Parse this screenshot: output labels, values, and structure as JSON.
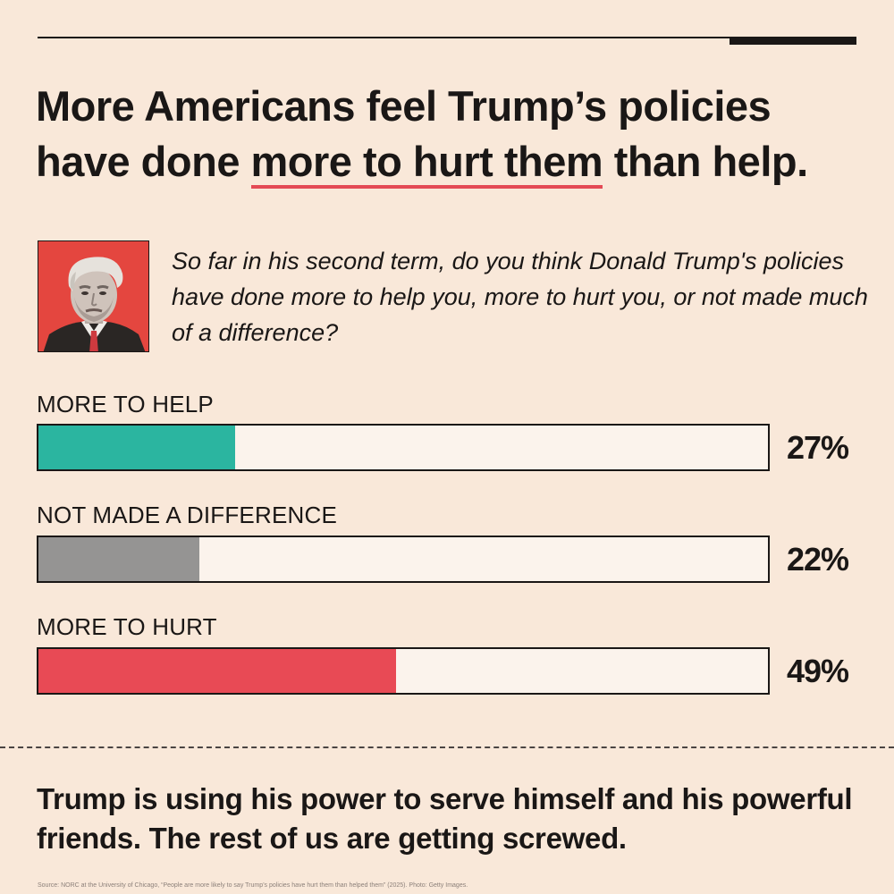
{
  "headline": {
    "line1": "More Americans feel Trump’s policies",
    "line2_before": "have done ",
    "line2_highlight": "more to hurt them",
    "line2_after": " than help."
  },
  "question": "So far in his second term, do you think Donald Trump's policies have done more to help you, more to hurt you, or not made much of a difference?",
  "chart_data": {
    "type": "bar",
    "orientation": "horizontal",
    "categories": [
      "MORE TO HELP",
      "NOT MADE A DIFFERENCE",
      "MORE TO HURT"
    ],
    "values": [
      27,
      22,
      49
    ],
    "value_labels": [
      "27%",
      "22%",
      "49%"
    ],
    "colors": [
      "#2bb5a0",
      "#959493",
      "#e84a55"
    ],
    "xlim": [
      0,
      100
    ],
    "grid": false
  },
  "closing": "Trump is using his power to serve himself and his powerful friends. The rest of us are getting screwed.",
  "source": "Source: NORC at the University of Chicago, “People are more likely to say Trump’s policies have hurt them than helped them” (2025). Photo: Getty Images."
}
